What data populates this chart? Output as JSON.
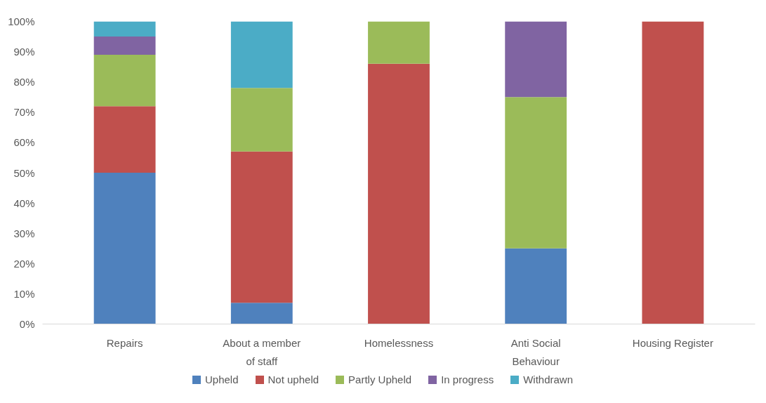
{
  "chart_data": {
    "type": "bar",
    "stacked": true,
    "categories": [
      "Repairs",
      "About a member of staff",
      "Homelessness",
      "Anti Social Behaviour",
      "Housing Register"
    ],
    "series": [
      {
        "name": "Upheld",
        "color": "#4f81bd",
        "values": [
          50,
          7,
          0,
          25,
          0
        ]
      },
      {
        "name": "Not upheld",
        "color": "#c0504d",
        "values": [
          22,
          50,
          86,
          0,
          100
        ]
      },
      {
        "name": "Partly Upheld",
        "color": "#9bbb59",
        "values": [
          17,
          21,
          14,
          50,
          0
        ]
      },
      {
        "name": "In progress",
        "color": "#8064a2",
        "values": [
          6,
          0,
          0,
          25,
          0
        ]
      },
      {
        "name": "Withdrawn",
        "color": "#4bacc6",
        "values": [
          5,
          22,
          0,
          0,
          0
        ]
      }
    ],
    "ylim": [
      0,
      100
    ],
    "yticks": [
      {
        "value": 0,
        "label": "0%"
      },
      {
        "value": 10,
        "label": "10%"
      },
      {
        "value": 20,
        "label": "20%"
      },
      {
        "value": 30,
        "label": "30%"
      },
      {
        "value": 40,
        "label": "40%"
      },
      {
        "value": 50,
        "label": "50%"
      },
      {
        "value": 60,
        "label": "60%"
      },
      {
        "value": 70,
        "label": "70%"
      },
      {
        "value": 80,
        "label": "80%"
      },
      {
        "value": 90,
        "label": "90%"
      },
      {
        "value": 100,
        "label": "100%"
      }
    ],
    "grid": false,
    "legend": "bottom"
  }
}
